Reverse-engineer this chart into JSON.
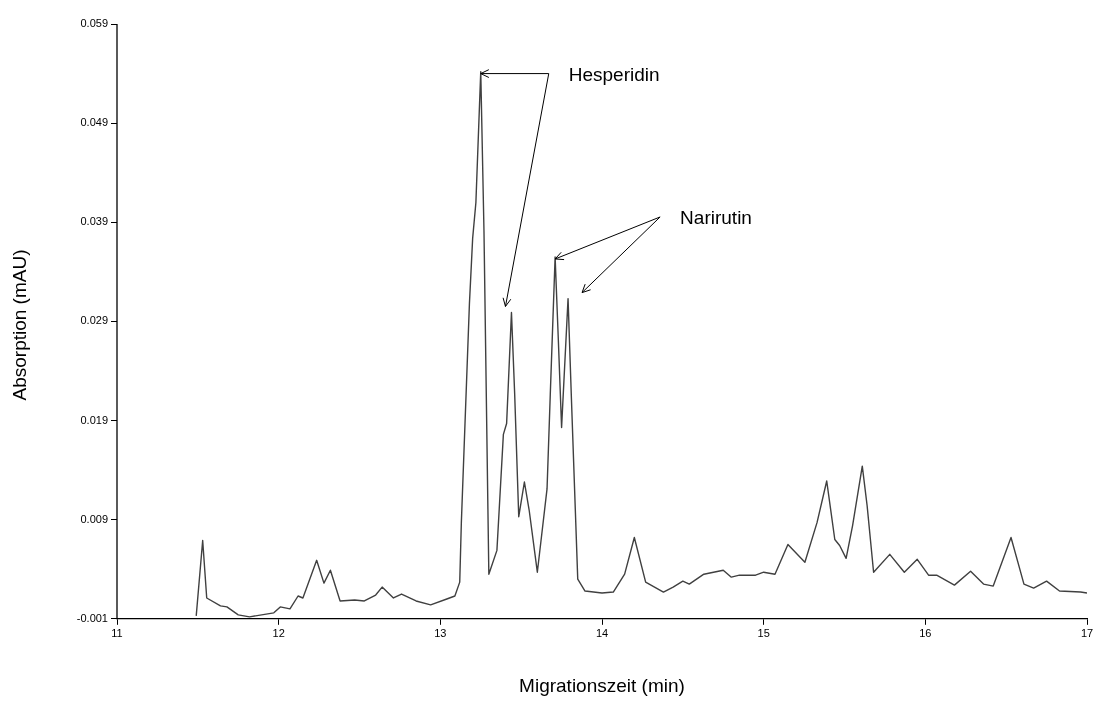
{
  "chart_data": {
    "type": "line",
    "xlabel": "Migrationszeit (min)",
    "ylabel": "Absorption (mAU)",
    "xlim": [
      11,
      17
    ],
    "xticks": [
      11,
      12,
      13,
      14,
      15,
      16,
      17
    ],
    "ylim": [
      -0.001,
      0.059
    ],
    "yticks": [
      -0.001,
      0.009,
      0.019,
      0.029,
      0.039,
      0.049,
      0.059
    ],
    "grid": false,
    "legend": false,
    "marker": "none",
    "line_style": "solid",
    "series": [
      {
        "color": "#404040",
        "x": [
          11.49,
          11.53,
          11.555,
          11.64,
          11.68,
          11.75,
          11.82,
          11.97,
          12.01,
          12.07,
          12.12,
          12.15,
          12.235,
          12.28,
          12.32,
          12.38,
          12.47,
          12.53,
          12.6,
          12.64,
          12.71,
          12.76,
          12.85,
          12.94,
          13.04,
          13.09,
          13.12,
          13.13,
          13.18,
          13.2,
          13.22,
          13.25,
          13.27,
          13.3,
          13.35,
          13.39,
          13.41,
          13.44,
          13.46,
          13.485,
          13.52,
          13.55,
          13.6,
          13.66,
          13.68,
          13.71,
          13.73,
          13.75,
          13.79,
          13.81,
          13.85,
          13.895,
          14.0,
          14.07,
          14.14,
          14.2,
          14.27,
          14.38,
          14.44,
          14.5,
          14.54,
          14.63,
          14.75,
          14.8,
          14.85,
          14.95,
          15.0,
          15.07,
          15.15,
          15.255,
          15.33,
          15.39,
          15.44,
          15.47,
          15.51,
          15.55,
          15.61,
          15.64,
          15.68,
          15.78,
          15.87,
          15.95,
          16.02,
          16.07,
          16.18,
          16.28,
          16.36,
          16.42,
          16.53,
          16.61,
          16.67,
          16.75,
          16.83,
          16.96,
          17.0
        ],
        "values": [
          -0.0007,
          0.0069,
          0.0011,
          0.0003,
          0.0002,
          -0.0006,
          -0.0008,
          -0.0004,
          0.0002,
          0.0,
          0.0013,
          0.0011,
          0.0049,
          0.0026,
          0.0039,
          0.0008,
          0.0009,
          0.0008,
          0.0014,
          0.0022,
          0.0011,
          0.0015,
          0.0008,
          0.0004,
          0.001,
          0.0013,
          0.0027,
          0.0087,
          0.0308,
          0.0374,
          0.041,
          0.0542,
          0.0381,
          0.0035,
          0.0059,
          0.0176,
          0.0187,
          0.0299,
          0.0216,
          0.0093,
          0.0128,
          0.0099,
          0.0037,
          0.0121,
          0.0216,
          0.0355,
          0.0271,
          0.0183,
          0.0313,
          0.0216,
          0.003,
          0.0018,
          0.0016,
          0.0017,
          0.0035,
          0.0072,
          0.0027,
          0.0017,
          0.0022,
          0.0028,
          0.0025,
          0.0035,
          0.0039,
          0.0032,
          0.0034,
          0.0034,
          0.0037,
          0.0035,
          0.0065,
          0.0047,
          0.0087,
          0.0129,
          0.007,
          0.0064,
          0.0051,
          0.0084,
          0.0144,
          0.0104,
          0.0037,
          0.0055,
          0.0037,
          0.005,
          0.0034,
          0.0034,
          0.0024,
          0.0038,
          0.0025,
          0.0023,
          0.0072,
          0.0025,
          0.0021,
          0.0028,
          0.0018,
          0.0017,
          0.0016
        ]
      }
    ],
    "annotations": [
      {
        "text": "Hesperidin",
        "x": 13.25,
        "y": 0.0542
      },
      {
        "text": "Narirutin",
        "x": 13.71,
        "y": 0.0355
      }
    ]
  }
}
